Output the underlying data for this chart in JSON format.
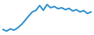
{
  "y_values": [
    13.0,
    12.5,
    13.2,
    12.8,
    13.5,
    14.5,
    15.8,
    17.2,
    18.5,
    19.0,
    20.5,
    19.0,
    20.8,
    19.8,
    20.2,
    19.5,
    19.8,
    19.2,
    19.6,
    18.8,
    19.2,
    18.5,
    18.9,
    18.0,
    18.5
  ],
  "line_color": "#3a96d0",
  "line_width": 1.5,
  "background_color": "#ffffff",
  "ylim_min": 11.5,
  "ylim_max": 22.0
}
